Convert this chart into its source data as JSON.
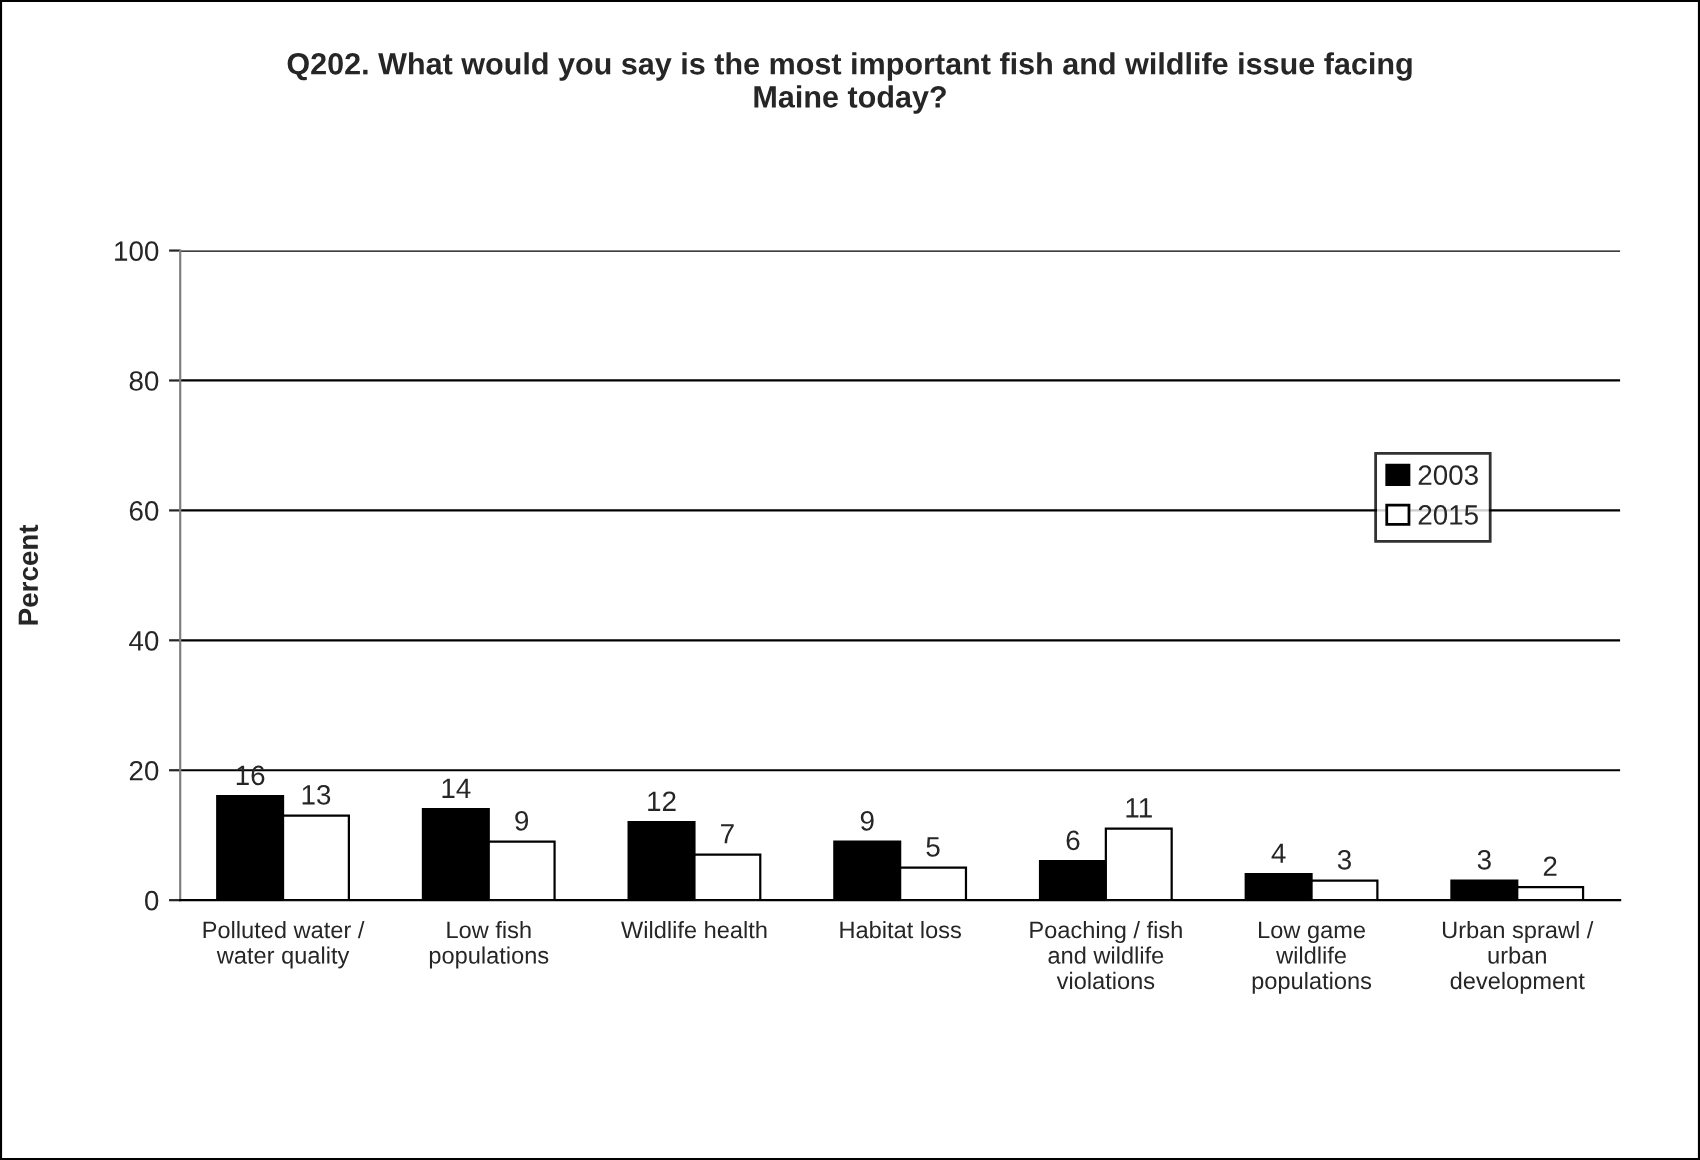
{
  "chart_data": {
    "type": "bar",
    "title": "Q202. What would you say is the most important fish and wildlife issue facing\nMaine today?",
    "ylabel": "Percent",
    "categories": [
      "Polluted water /\nwater quality",
      "Low fish\npopulations",
      "Wildlife health",
      "Habitat loss",
      "Poaching / fish\nand wildlife\nviolations",
      "Low game\nwildlife\npopulations",
      "Urban sprawl /\nurban\ndevelopment"
    ],
    "series": [
      {
        "name": "2003",
        "color": "#000000",
        "values": [
          16,
          14,
          12,
          9,
          6,
          4,
          3
        ]
      },
      {
        "name": "2015",
        "color": "#ffffff",
        "values": [
          13,
          9,
          7,
          5,
          11,
          3,
          2
        ]
      }
    ],
    "ylim": [
      0,
      100
    ],
    "yticks": [
      0,
      20,
      40,
      60,
      80,
      100
    ],
    "grid": "y",
    "legend": "right",
    "data_labels": true
  }
}
